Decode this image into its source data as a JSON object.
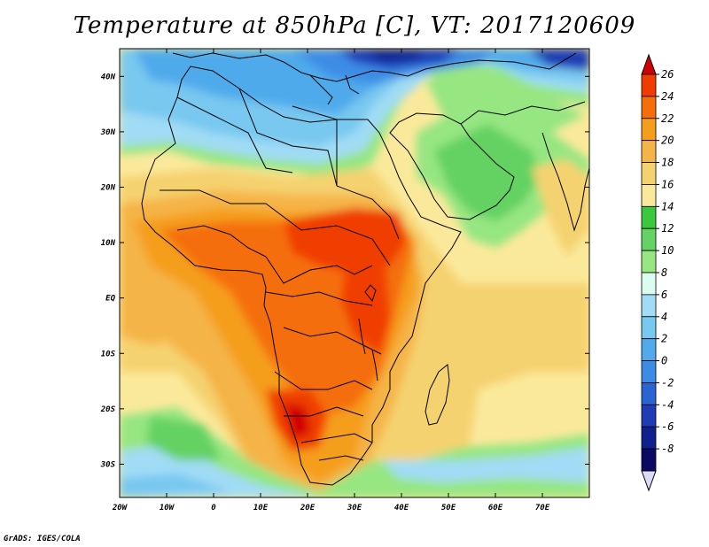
{
  "title": "Temperature at 850hPa [C], VT: 2017120609",
  "footer": "GrADS: IGES/COLA",
  "map": {
    "lon_range": [
      -20,
      80
    ],
    "lat_range": [
      -36,
      45
    ],
    "lon_ticks": [
      "20W",
      "10W",
      "0",
      "10E",
      "20E",
      "30E",
      "40E",
      "50E",
      "60E",
      "70E"
    ],
    "lat_ticks": [
      "40N",
      "30N",
      "20N",
      "10N",
      "EQ",
      "10S",
      "20S",
      "30S"
    ]
  },
  "colorbar": {
    "labels": [
      "26",
      "24",
      "22",
      "20",
      "18",
      "16",
      "14",
      "12",
      "10",
      "8",
      "6",
      "4",
      "2",
      "0",
      "-2",
      "-4",
      "-6",
      "-8"
    ],
    "colors": [
      "#d20000",
      "#f03c00",
      "#f56e0a",
      "#f59e1e",
      "#f5b447",
      "#f5d270",
      "#fbe99b",
      "#3cc83c",
      "#64d264",
      "#96e682",
      "#dcfcf0",
      "#a0dcf5",
      "#78c8f0",
      "#50aaeb",
      "#3c8ce6",
      "#2864d2",
      "#1e3cb4",
      "#10208c",
      "#0a0a64",
      "#dcdcfa"
    ]
  }
}
